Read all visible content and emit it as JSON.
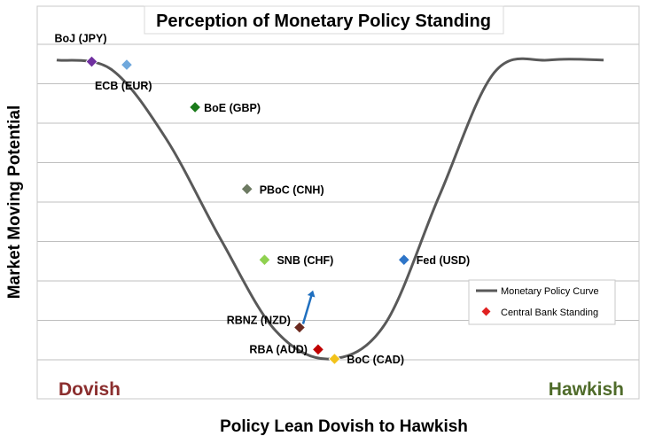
{
  "chart_data": {
    "type": "line",
    "title": "Perception of Monetary Policy Standing",
    "xlabel": "Policy Lean Dovish to Hawkish",
    "ylabel": "Market Moving Potential",
    "corner_labels": {
      "left": "Dovish",
      "right": "Hawkish"
    },
    "corner_colors": {
      "left": "#8b2e2e",
      "right": "#4f6b2a"
    },
    "grid": true,
    "legend_position": "right",
    "legend": {
      "curve_label": "Monetary Policy Curve",
      "points_label": "Central Bank Standing",
      "curve_color": "#595959",
      "points_color": "#e02020"
    },
    "curve": {
      "x": [
        0,
        10,
        20,
        30,
        40,
        50,
        60,
        70,
        80,
        90,
        100
      ],
      "y": [
        9.5,
        9.2,
        7.0,
        3.8,
        0.9,
        0.0,
        1.1,
        5.2,
        9.1,
        9.5,
        9.5
      ]
    },
    "series": [
      {
        "name": "BoJ (JPY)",
        "label": "BoJ (JPY)",
        "x": 6.4,
        "y": 9.45,
        "color": "#7030a0"
      },
      {
        "name": "ECB (EUR)",
        "label": "ECB (EUR)",
        "x": 12.8,
        "y": 9.35,
        "color": "#6fa8dc"
      },
      {
        "name": "BoE (GBP)",
        "label": "BoE (GBP)",
        "x": 25.3,
        "y": 8.0,
        "color": "#1a7a1a"
      },
      {
        "name": "PBoC (CNH)",
        "label": "PBoC (CNH)",
        "x": 34.8,
        "y": 5.4,
        "color": "#6d7a62"
      },
      {
        "name": "SNB (CHF)",
        "label": "SNB (CHF)",
        "x": 38.0,
        "y": 3.15,
        "color": "#8fd14f"
      },
      {
        "name": "RBNZ (NZD)",
        "label": "RBNZ (NZD)",
        "x": 44.4,
        "y": 1.0,
        "color": "#6b2a1f"
      },
      {
        "name": "RBA (AUD)",
        "label": "RBA (AUD)",
        "x": 47.8,
        "y": 0.3,
        "color": "#c00000"
      },
      {
        "name": "BoC (CAD)",
        "label": "BoC (CAD)",
        "x": 50.8,
        "y": 0.0,
        "color": "#f2c21a"
      },
      {
        "name": "Fed (USD)",
        "label": "Fed (USD)",
        "x": 63.5,
        "y": 3.15,
        "color": "#2e75c8"
      }
    ],
    "annotation": {
      "type": "arrow",
      "from": {
        "x": 44.4,
        "y": 1.0
      },
      "to": {
        "x": 46.4,
        "y": 2.1
      },
      "color": "#1f6fbf"
    },
    "xlim": [
      0,
      100
    ],
    "ylim": [
      0,
      10
    ]
  }
}
